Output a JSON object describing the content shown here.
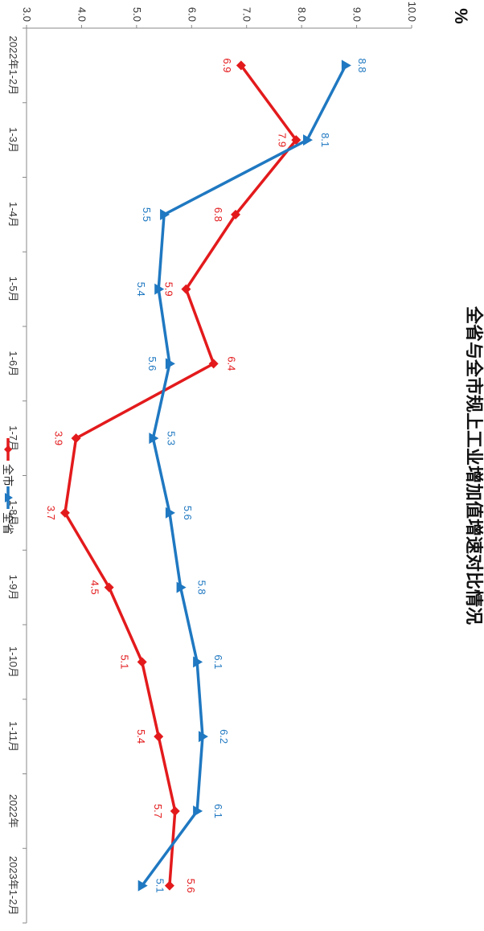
{
  "chart_data": {
    "type": "line",
    "title": "全省与全市规上工业增加值增速对比情况",
    "unit": "%",
    "categories": [
      "2022年1-2月",
      "1-3月",
      "1-4月",
      "1-5月",
      "1-6月",
      "1-7月",
      "1-8月",
      "1-9月",
      "1-10月",
      "1-11月",
      "2022年",
      "2023年1-2月"
    ],
    "ylim": [
      3.0,
      10.0
    ],
    "yticks": [
      "3.0",
      "4.0",
      "5.0",
      "6.0",
      "7.0",
      "8.0",
      "9.0",
      "10.0"
    ],
    "legend_position": "bottom",
    "series": [
      {
        "name": "全市",
        "color": "#e31a1c",
        "marker": "diamond",
        "values": [
          6.9,
          7.9,
          6.8,
          5.9,
          6.4,
          3.9,
          3.7,
          4.5,
          5.1,
          5.4,
          5.7,
          5.6
        ]
      },
      {
        "name": "全省",
        "color": "#1f78c1",
        "marker": "triangle",
        "values": [
          8.8,
          8.1,
          5.5,
          5.4,
          5.6,
          5.3,
          5.6,
          5.8,
          6.1,
          6.2,
          6.1,
          5.1
        ]
      }
    ]
  }
}
